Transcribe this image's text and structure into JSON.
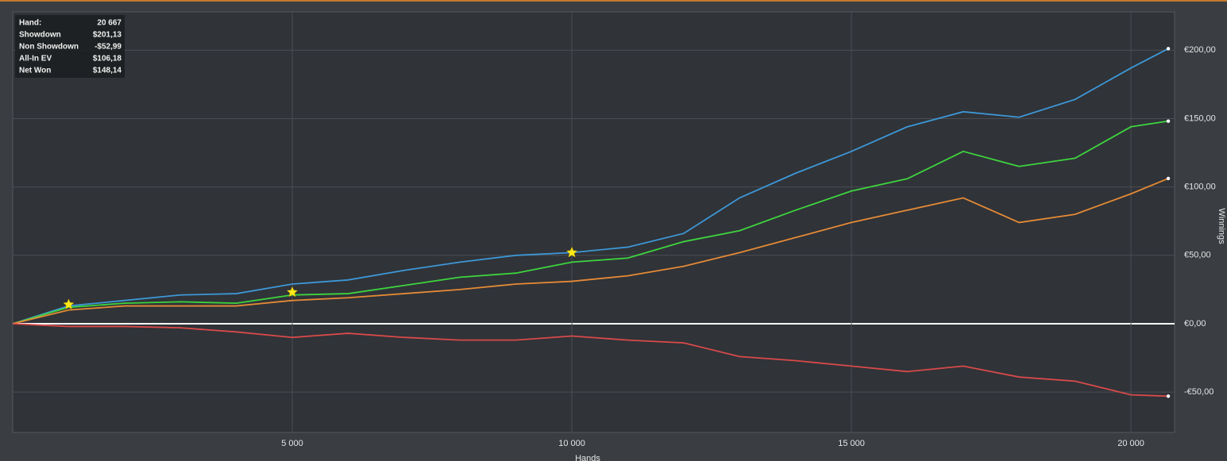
{
  "chart_data": {
    "type": "line",
    "xlabel": "Hands",
    "ylabel": "Winnings",
    "x": [
      0,
      1000,
      2000,
      3000,
      4000,
      5000,
      6000,
      7000,
      8000,
      9000,
      10000,
      11000,
      12000,
      13000,
      14000,
      15000,
      16000,
      17000,
      18000,
      19000,
      20000,
      20667
    ],
    "series": [
      {
        "name": "Showdown",
        "color": "#3d97d6",
        "values": [
          0,
          13,
          17,
          21,
          22,
          29,
          32,
          39,
          45,
          50,
          52,
          56,
          66,
          92,
          110,
          126,
          144,
          155,
          151,
          164,
          187,
          201.13
        ]
      },
      {
        "name": "Net Won",
        "color": "#3ed43e",
        "values": [
          0,
          12,
          15,
          16,
          15,
          21,
          22,
          28,
          34,
          37,
          45,
          48,
          60,
          68,
          83,
          97,
          106,
          126,
          115,
          121,
          144,
          148.14
        ]
      },
      {
        "name": "All-In EV",
        "color": "#e48a36",
        "values": [
          0,
          10,
          13,
          13,
          13,
          17,
          19,
          22,
          25,
          29,
          31,
          35,
          42,
          52,
          63,
          74,
          83,
          92,
          74,
          80,
          95,
          106.18
        ]
      },
      {
        "name": "Non Showdown",
        "color": "#d94a4a",
        "values": [
          0,
          -2,
          -2,
          -3,
          -6,
          -10,
          -7,
          -10,
          -12,
          -12,
          -9,
          -12,
          -14,
          -24,
          -27,
          -31,
          -35,
          -31,
          -39,
          -42,
          -52,
          -52.99
        ]
      }
    ],
    "highlights": {
      "color": "#ffe81a",
      "x": [
        1000,
        5000,
        10000
      ],
      "y": [
        14,
        23,
        52
      ]
    },
    "xlim": [
      0,
      20780
    ],
    "ylim": [
      -79.5,
      228
    ],
    "xticks": [
      {
        "value": 5000,
        "label": "5 000"
      },
      {
        "value": 10000,
        "label": "10 000"
      },
      {
        "value": 15000,
        "label": "15 000"
      },
      {
        "value": 20000,
        "label": "20 000"
      }
    ],
    "yticks": [
      {
        "value": -50,
        "label": "-€50,00"
      },
      {
        "value": 0,
        "label": "€0,00"
      },
      {
        "value": 50,
        "label": "€50,00"
      },
      {
        "value": 100,
        "label": "€100,00"
      },
      {
        "value": 150,
        "label": "€150,00"
      },
      {
        "value": 200,
        "label": "€200,00"
      }
    ],
    "grid": true,
    "summary": {
      "rows": [
        [
          "Hand:",
          "20 667"
        ],
        [
          "Showdown",
          "$201,13"
        ],
        [
          "Non Showdown",
          "-$52,99"
        ],
        [
          "All-In EV",
          "$106,18"
        ],
        [
          "Net Won",
          "$148,14"
        ]
      ]
    }
  }
}
